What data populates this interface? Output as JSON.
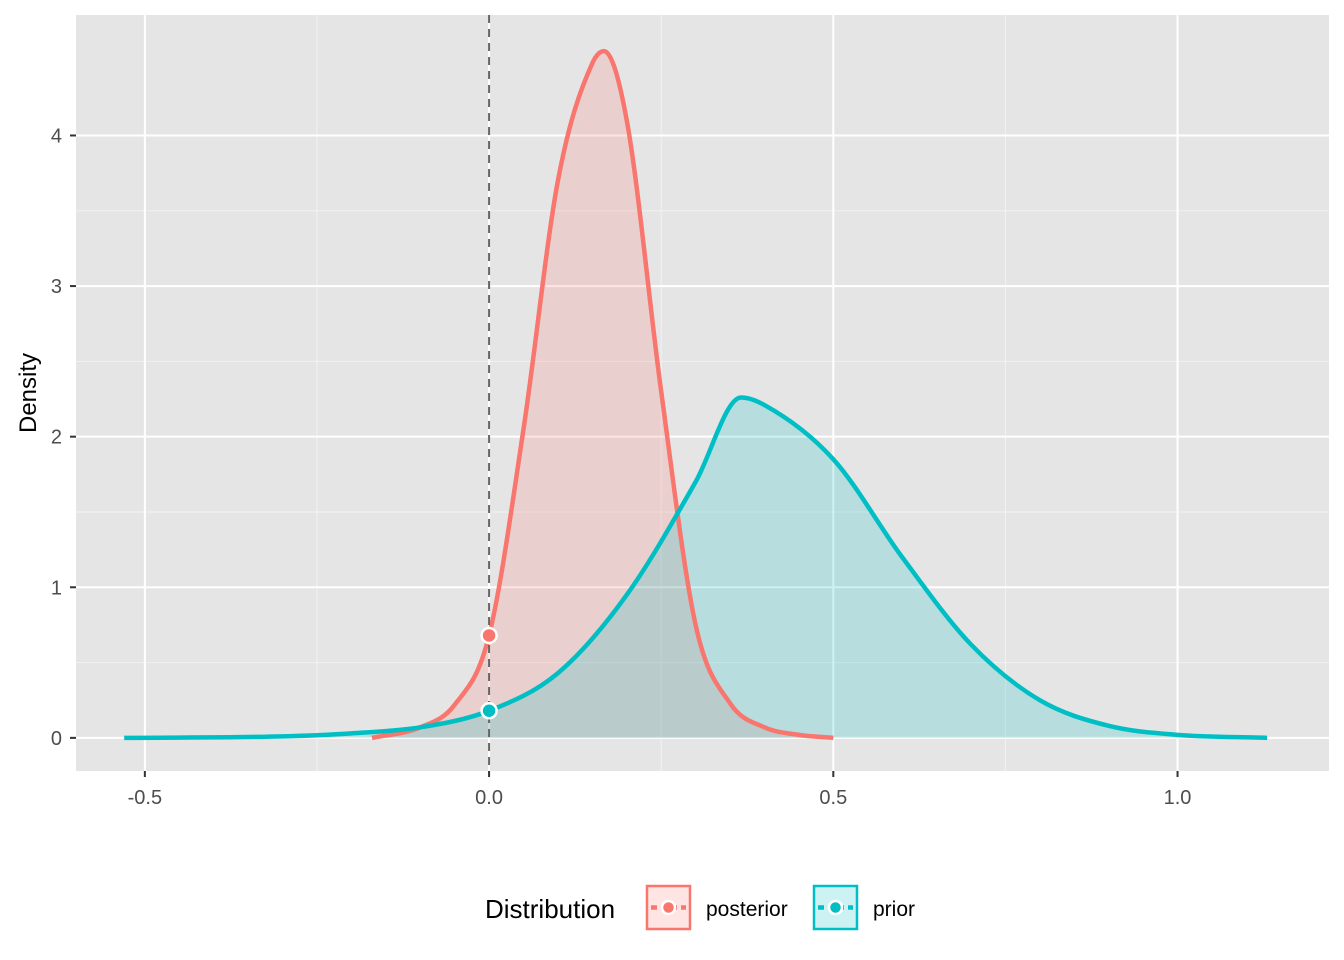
{
  "chart_data": {
    "type": "area",
    "xlabel": "",
    "ylabel": "Density",
    "xlim": [
      -0.6,
      1.22
    ],
    "ylim": [
      -0.22,
      4.8
    ],
    "x_ticks": [
      -0.5,
      0.0,
      0.5,
      1.0
    ],
    "x_tick_labels": [
      "-0.5",
      "0.0",
      "0.5",
      "1.0"
    ],
    "y_ticks": [
      0,
      1,
      2,
      3,
      4
    ],
    "y_tick_labels": [
      "0",
      "1",
      "2",
      "3",
      "4"
    ],
    "grid": true,
    "background": "#e5e5e5",
    "reference_line": {
      "x": 0,
      "style": "dashed"
    },
    "legend": {
      "title": "Distribution",
      "position": "bottom"
    },
    "series": [
      {
        "name": "posterior",
        "color": "#f8766d",
        "x": [
          -0.17,
          -0.1,
          -0.05,
          0.0,
          0.05,
          0.1,
          0.15,
          0.167,
          0.2,
          0.25,
          0.3,
          0.35,
          0.4,
          0.45,
          0.5
        ],
        "y": [
          0.0,
          0.07,
          0.22,
          0.68,
          2.05,
          3.7,
          4.48,
          4.56,
          4.1,
          2.3,
          0.75,
          0.23,
          0.07,
          0.02,
          0.0
        ],
        "point_at_zero": 0.68
      },
      {
        "name": "prior",
        "color": "#00bfc4",
        "x": [
          -0.53,
          -0.3,
          -0.2,
          -0.1,
          0.0,
          0.1,
          0.2,
          0.3,
          0.366,
          0.4,
          0.5,
          0.6,
          0.7,
          0.8,
          0.9,
          1.0,
          1.13
        ],
        "y": [
          0.0,
          0.01,
          0.03,
          0.07,
          0.18,
          0.43,
          0.95,
          1.7,
          2.26,
          2.21,
          1.85,
          1.2,
          0.62,
          0.25,
          0.08,
          0.02,
          0.0
        ],
        "point_at_zero": 0.18
      }
    ]
  }
}
